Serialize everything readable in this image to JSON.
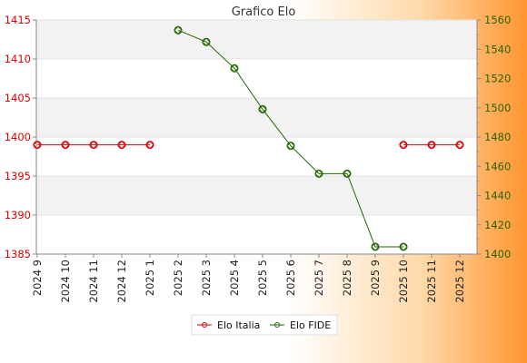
{
  "chart_data": {
    "type": "line",
    "title": "Grafico Elo",
    "categories": [
      "2024 9",
      "2024 10",
      "2024 11",
      "2024 12",
      "2025 1",
      "2025 2",
      "2025 3",
      "2025 4",
      "2025 5",
      "2025 6",
      "2025 7",
      "2025 8",
      "2025 9",
      "2025 10",
      "2025 11",
      "2025 12"
    ],
    "left_axis": {
      "ylim": [
        1385,
        1415
      ],
      "ticks": [
        1385,
        1390,
        1395,
        1400,
        1405,
        1410,
        1415
      ],
      "color": "#dd0000"
    },
    "right_axis": {
      "ylim": [
        1400,
        1560
      ],
      "ticks": [
        1400,
        1420,
        1440,
        1460,
        1480,
        1500,
        1520,
        1540,
        1560
      ],
      "color": "#226600"
    },
    "grid": true,
    "legend_position": "bottom",
    "series": [
      {
        "name": "Elo Italia",
        "axis": "left",
        "color": "#dd0000",
        "values": [
          1399,
          1399,
          1399,
          1399,
          1399,
          null,
          null,
          null,
          null,
          null,
          null,
          null,
          null,
          1399,
          1399,
          1399
        ]
      },
      {
        "name": "Elo FIDE",
        "axis": "right",
        "color": "#226600",
        "values": [
          null,
          null,
          null,
          null,
          null,
          1553,
          1545,
          1527,
          1499,
          1474,
          1455,
          1455,
          1405,
          1405,
          null,
          null
        ]
      }
    ]
  }
}
